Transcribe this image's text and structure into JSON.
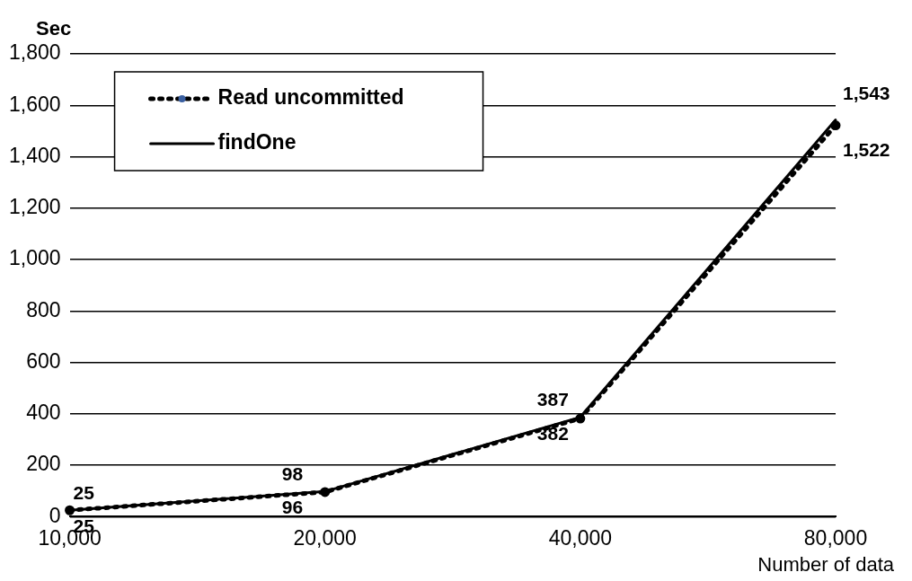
{
  "chart_data": {
    "type": "line",
    "xlabel": "Number of data",
    "ylabel": "Sec",
    "categories": [
      "10,000",
      "20,000",
      "40,000",
      "80,000"
    ],
    "series": [
      {
        "name": "Read uncommitted",
        "color": "#000000",
        "values": [
          25,
          96,
          382,
          1522
        ],
        "value_labels": [
          "25",
          "96",
          "382",
          "1,522"
        ],
        "line_style": "dotted",
        "marker": "circle"
      },
      {
        "name": "findOne",
        "color": "#000000",
        "values": [
          25,
          98,
          387,
          1543
        ],
        "value_labels": [
          "25",
          "98",
          "387",
          "1,543"
        ],
        "line_style": "solid",
        "marker": "none"
      }
    ],
    "ylim": [
      0,
      1800
    ],
    "yticks": [
      0,
      200,
      400,
      600,
      800,
      {
        "value": 1000,
        "label": "1,000"
      },
      {
        "value": 1200,
        "label": "1,200"
      },
      {
        "value": 1400,
        "label": "1,400"
      },
      {
        "value": 1600,
        "label": "1,600"
      },
      {
        "value": 1800,
        "label": "1,800"
      }
    ],
    "grid": "y",
    "legend": "top left"
  }
}
